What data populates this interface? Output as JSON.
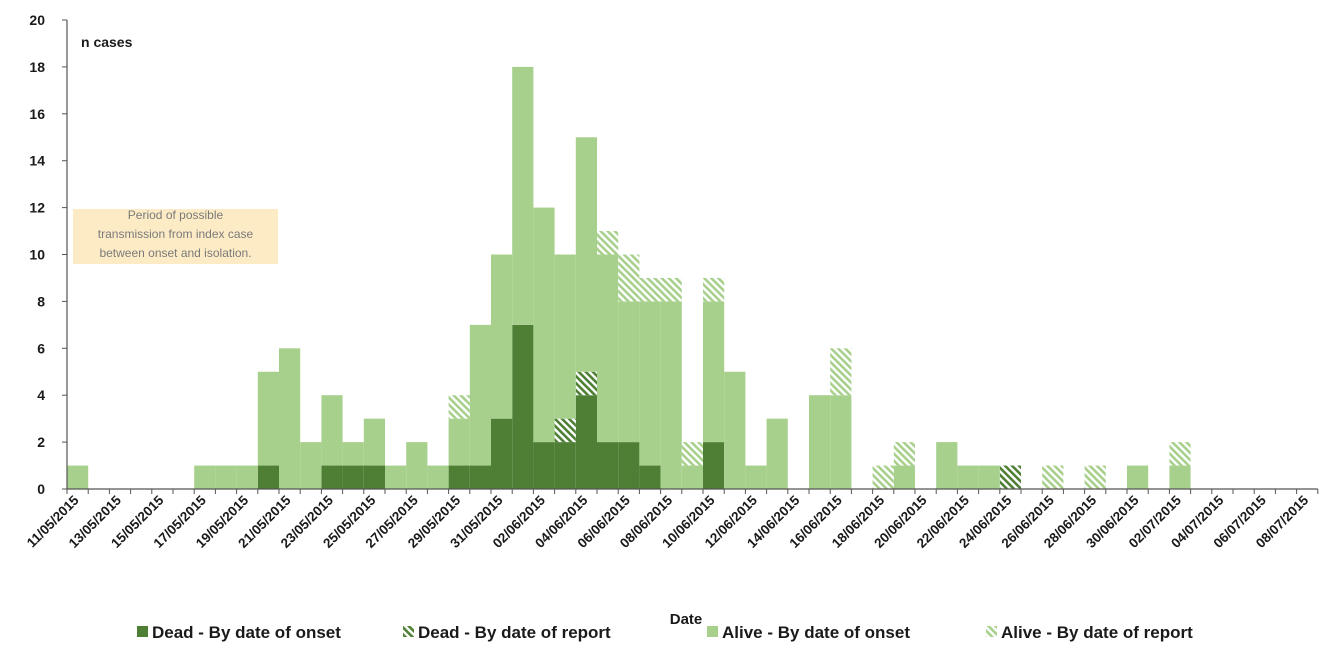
{
  "chart_data": {
    "type": "bar",
    "stacked": true,
    "ylabel": "n cases",
    "xlabel": "Date",
    "ylim": [
      0,
      20
    ],
    "yticks": [
      0,
      2,
      4,
      6,
      8,
      10,
      12,
      14,
      16,
      18,
      20
    ],
    "start_date": "11/05/2015",
    "end_date": "09/07/2015",
    "xtick_labels": [
      "11/05/2015",
      "13/05/2015",
      "15/05/2015",
      "17/05/2015",
      "19/05/2015",
      "21/05/2015",
      "23/05/2015",
      "25/05/2015",
      "27/05/2015",
      "29/05/2015",
      "31/05/2015",
      "02/06/2015",
      "04/06/2015",
      "06/06/2015",
      "08/06/2015",
      "10/06/2015",
      "12/06/2015",
      "14/06/2015",
      "16/06/2015",
      "18/06/2015",
      "20/06/2015",
      "22/06/2015",
      "24/06/2015",
      "26/06/2015",
      "28/06/2015",
      "30/06/2015",
      "02/07/2015",
      "04/07/2015",
      "06/07/2015",
      "08/07/2015"
    ],
    "annotation": [
      "Period of possible",
      "transmission from index case",
      "between onset and isolation."
    ],
    "series": [
      {
        "name": "Dead - By date of onset",
        "color": "#4e7f35",
        "pattern": "solid",
        "points": [
          {
            "date": "20/05/2015",
            "value": 1
          },
          {
            "date": "23/05/2015",
            "value": 1
          },
          {
            "date": "24/05/2015",
            "value": 1
          },
          {
            "date": "25/05/2015",
            "value": 1
          },
          {
            "date": "29/05/2015",
            "value": 1
          },
          {
            "date": "30/05/2015",
            "value": 1
          },
          {
            "date": "31/05/2015",
            "value": 3
          },
          {
            "date": "01/06/2015",
            "value": 7
          },
          {
            "date": "02/06/2015",
            "value": 2
          },
          {
            "date": "03/06/2015",
            "value": 2
          },
          {
            "date": "04/06/2015",
            "value": 4
          },
          {
            "date": "05/06/2015",
            "value": 2
          },
          {
            "date": "06/06/2015",
            "value": 2
          },
          {
            "date": "07/06/2015",
            "value": 1
          },
          {
            "date": "10/06/2015",
            "value": 2
          }
        ]
      },
      {
        "name": "Dead - By date of report",
        "color": "#4e7f35",
        "pattern": "hatch",
        "points": [
          {
            "date": "03/06/2015",
            "value": 1
          },
          {
            "date": "04/06/2015",
            "value": 1
          },
          {
            "date": "24/06/2015",
            "value": 1
          }
        ]
      },
      {
        "name": "Alive - By date of onset",
        "color": "#a8d08d",
        "pattern": "solid",
        "points": [
          {
            "date": "11/05/2015",
            "value": 1
          },
          {
            "date": "17/05/2015",
            "value": 1
          },
          {
            "date": "18/05/2015",
            "value": 1
          },
          {
            "date": "19/05/2015",
            "value": 1
          },
          {
            "date": "20/05/2015",
            "value": 4
          },
          {
            "date": "21/05/2015",
            "value": 6
          },
          {
            "date": "22/05/2015",
            "value": 2
          },
          {
            "date": "23/05/2015",
            "value": 3
          },
          {
            "date": "24/05/2015",
            "value": 1
          },
          {
            "date": "25/05/2015",
            "value": 2
          },
          {
            "date": "26/05/2015",
            "value": 1
          },
          {
            "date": "27/05/2015",
            "value": 2
          },
          {
            "date": "28/05/2015",
            "value": 1
          },
          {
            "date": "29/05/2015",
            "value": 2
          },
          {
            "date": "30/05/2015",
            "value": 6
          },
          {
            "date": "31/05/2015",
            "value": 7
          },
          {
            "date": "01/06/2015",
            "value": 11
          },
          {
            "date": "02/06/2015",
            "value": 10
          },
          {
            "date": "03/06/2015",
            "value": 7
          },
          {
            "date": "04/06/2015",
            "value": 10
          },
          {
            "date": "05/06/2015",
            "value": 8
          },
          {
            "date": "06/06/2015",
            "value": 6
          },
          {
            "date": "07/06/2015",
            "value": 7
          },
          {
            "date": "08/06/2015",
            "value": 8
          },
          {
            "date": "09/06/2015",
            "value": 1
          },
          {
            "date": "10/06/2015",
            "value": 6
          },
          {
            "date": "11/06/2015",
            "value": 5
          },
          {
            "date": "12/06/2015",
            "value": 1
          },
          {
            "date": "13/06/2015",
            "value": 3
          },
          {
            "date": "15/06/2015",
            "value": 4
          },
          {
            "date": "16/06/2015",
            "value": 4
          },
          {
            "date": "19/06/2015",
            "value": 1
          },
          {
            "date": "21/06/2015",
            "value": 2
          },
          {
            "date": "22/06/2015",
            "value": 1
          },
          {
            "date": "23/06/2015",
            "value": 1
          },
          {
            "date": "30/06/2015",
            "value": 1
          },
          {
            "date": "02/07/2015",
            "value": 1
          }
        ]
      },
      {
        "name": "Alive - By date of report",
        "color": "#a8d08d",
        "pattern": "hatch",
        "points": [
          {
            "date": "29/05/2015",
            "value": 1
          },
          {
            "date": "05/06/2015",
            "value": 1
          },
          {
            "date": "06/06/2015",
            "value": 2
          },
          {
            "date": "07/06/2015",
            "value": 1
          },
          {
            "date": "08/06/2015",
            "value": 1
          },
          {
            "date": "09/06/2015",
            "value": 1
          },
          {
            "date": "10/06/2015",
            "value": 1
          },
          {
            "date": "16/06/2015",
            "value": 2
          },
          {
            "date": "18/06/2015",
            "value": 1
          },
          {
            "date": "19/06/2015",
            "value": 1
          },
          {
            "date": "26/06/2015",
            "value": 1
          },
          {
            "date": "28/06/2015",
            "value": 1
          },
          {
            "date": "02/07/2015",
            "value": 1
          }
        ]
      }
    ],
    "legend_position": "bottom",
    "grid": false
  }
}
